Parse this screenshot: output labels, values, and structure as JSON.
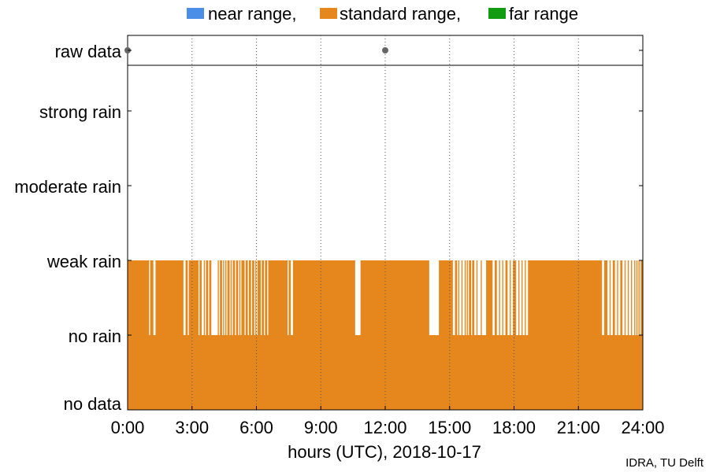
{
  "chart_data": {
    "type": "bar",
    "legend": {
      "placement": "top",
      "entries": [
        {
          "label": "near range,",
          "color": "#4b8ee8"
        },
        {
          "label": "standard range,",
          "color": "#e5871c"
        },
        {
          "label": "far range",
          "color": "#119c11"
        }
      ]
    },
    "xlabel": "hours (UTC), 2018-10-17",
    "credit": "IDRA, TU Delft",
    "x_ticks": [
      "0:00",
      "3:00",
      "6:00",
      "9:00",
      "12:00",
      "15:00",
      "18:00",
      "21:00",
      "24:00"
    ],
    "xlim": [
      0,
      24
    ],
    "y_categories": [
      "no data",
      "no rain",
      "weak rain",
      "moderate rain",
      "strong rain"
    ],
    "raw_data_label": "raw data",
    "raw_data_points": [
      0,
      12
    ],
    "grid": "vertical dotted at x ticks",
    "series": [
      {
        "name": "standard range",
        "color": "#e5871c",
        "base_level": "no rain",
        "weak_rain_intervals": [
          [
            0.0,
            1.0
          ],
          [
            1.05,
            1.2
          ],
          [
            1.3,
            2.6
          ],
          [
            2.7,
            2.8
          ],
          [
            2.85,
            3.3
          ],
          [
            3.35,
            3.45
          ],
          [
            3.55,
            3.6
          ],
          [
            3.65,
            3.75
          ],
          [
            3.8,
            3.9
          ],
          [
            4.2,
            4.25
          ],
          [
            4.3,
            4.4
          ],
          [
            4.45,
            4.5
          ],
          [
            4.55,
            4.6
          ],
          [
            4.65,
            4.75
          ],
          [
            4.8,
            4.85
          ],
          [
            4.9,
            5.0
          ],
          [
            5.05,
            5.15
          ],
          [
            5.2,
            5.25
          ],
          [
            5.3,
            5.45
          ],
          [
            5.5,
            5.6
          ],
          [
            5.65,
            5.75
          ],
          [
            5.8,
            5.9
          ],
          [
            5.95,
            6.0
          ],
          [
            6.05,
            6.2
          ],
          [
            6.25,
            6.35
          ],
          [
            6.4,
            6.5
          ],
          [
            6.55,
            7.45
          ],
          [
            7.5,
            7.6
          ],
          [
            7.7,
            10.6
          ],
          [
            10.85,
            14.05
          ],
          [
            14.5,
            15.15
          ],
          [
            15.25,
            15.35
          ],
          [
            15.4,
            15.45
          ],
          [
            15.55,
            15.6
          ],
          [
            15.7,
            15.75
          ],
          [
            15.8,
            15.85
          ],
          [
            15.9,
            16.0
          ],
          [
            16.05,
            16.15
          ],
          [
            16.25,
            16.3
          ],
          [
            16.45,
            16.5
          ],
          [
            16.7,
            17.0
          ],
          [
            17.1,
            17.2
          ],
          [
            17.3,
            17.35
          ],
          [
            17.45,
            17.5
          ],
          [
            17.6,
            17.7
          ],
          [
            17.8,
            17.85
          ],
          [
            17.95,
            18.1
          ],
          [
            18.2,
            18.25
          ],
          [
            18.35,
            18.4
          ],
          [
            18.5,
            18.55
          ],
          [
            18.65,
            22.1
          ],
          [
            22.2,
            22.35
          ],
          [
            22.45,
            22.5
          ],
          [
            22.6,
            22.7
          ],
          [
            22.8,
            22.85
          ],
          [
            22.95,
            23.05
          ],
          [
            23.15,
            23.2
          ],
          [
            23.3,
            23.35
          ],
          [
            23.45,
            23.5
          ],
          [
            23.6,
            23.65
          ],
          [
            23.7,
            23.75
          ],
          [
            23.8,
            23.85
          ],
          [
            23.9,
            24.0
          ]
        ]
      }
    ]
  }
}
